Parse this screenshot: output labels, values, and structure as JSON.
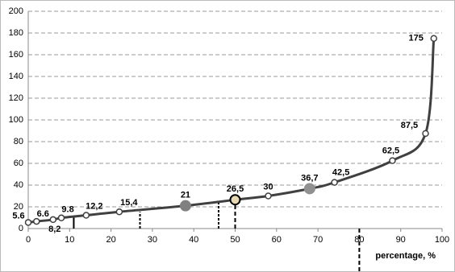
{
  "chart_data": {
    "type": "line",
    "x_label": "percentage, %",
    "x": [
      0,
      2,
      6,
      8,
      14,
      22,
      38,
      50,
      58,
      68,
      74,
      88,
      96,
      98
    ],
    "series": [
      {
        "color": "#404040",
        "values": [
          5.6,
          6.6,
          8.2,
          9.8,
          12.2,
          15.4,
          21,
          26.5,
          30,
          36.7,
          42.5,
          62.5,
          87.5,
          175
        ],
        "value_labels": [
          "5.6",
          "6.6",
          "8,2",
          "9.8",
          "12,2",
          "15,4",
          "21",
          "26,5",
          "30",
          "36,7",
          "42,5",
          "62,5",
          "87,5",
          "175"
        ],
        "marker_fills": [
          "#ffffff",
          "#ffffff",
          "#ffffff",
          "#ffffff",
          "#ffffff",
          "#ffffff",
          "#808080",
          "#e8d8b0",
          "#ffffff",
          "#909090",
          "#ffffff",
          "#ffffff",
          "#ffffff",
          "#ffffff"
        ]
      }
    ],
    "vlines": [
      {
        "x": 11,
        "y": [
          0,
          10
        ],
        "style": "solid"
      },
      {
        "x": 27,
        "y": [
          0,
          15.4
        ],
        "style": "dotted"
      },
      {
        "x": 46,
        "y": [
          0,
          25
        ],
        "style": "dotted"
      },
      {
        "x": 50,
        "y": [
          0,
          26.5
        ],
        "style": "dashed"
      },
      {
        "x": 80,
        "y": [
          0,
          -40
        ],
        "style": "dashed"
      }
    ],
    "xlim": [
      0,
      100
    ],
    "xticks": [
      0,
      10,
      20,
      30,
      40,
      50,
      60,
      70,
      80,
      90,
      100
    ],
    "ylim": [
      0,
      200
    ],
    "yticks": [
      0,
      20,
      40,
      60,
      80,
      100,
      120,
      140,
      160,
      180,
      200
    ],
    "grid": true
  }
}
